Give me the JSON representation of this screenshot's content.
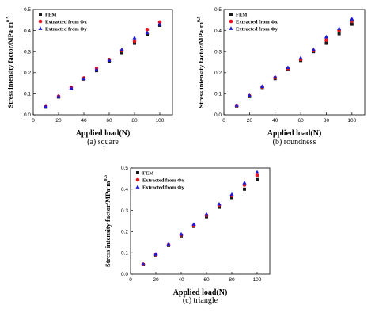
{
  "colors": {
    "fem": "#1a1a1a",
    "phi_x": "#e8141c",
    "phi_y": "#1b1bd6"
  },
  "chart_data": [
    {
      "type": "scatter",
      "caption": "(a) square",
      "xlabel": "Applied load(N)",
      "ylabel_text": "Stress intensity factor/MPa·m",
      "ylabel_exp": "0.5",
      "xlim": [
        0,
        110
      ],
      "ylim": [
        0,
        0.5
      ],
      "xticks": [
        "0",
        "20",
        "40",
        "60",
        "80",
        "100"
      ],
      "yticks": [
        "0.0",
        "0.1",
        "0.2",
        "0.3",
        "0.4",
        "0.5"
      ],
      "legend": [
        "FEM",
        "Extracted from Φx",
        "Extracted from Φy"
      ],
      "x": [
        10,
        20,
        30,
        40,
        50,
        60,
        70,
        80,
        90,
        100
      ],
      "series": [
        {
          "name": "FEM",
          "values": [
            0.04,
            0.085,
            0.125,
            0.17,
            0.21,
            0.255,
            0.295,
            0.34,
            0.38,
            0.425
          ]
        },
        {
          "name": "Extracted from Φx",
          "values": [
            0.042,
            0.088,
            0.13,
            0.175,
            0.22,
            0.262,
            0.305,
            0.35,
            0.405,
            0.44
          ]
        },
        {
          "name": "Extracted from Φy",
          "values": [
            0.041,
            0.087,
            0.128,
            0.172,
            0.215,
            0.26,
            0.31,
            0.365,
            0.39,
            0.43
          ]
        }
      ]
    },
    {
      "type": "scatter",
      "caption": "(b) roundness",
      "xlabel": "Applied load(N)",
      "ylabel_text": "Stress intensity factor/MPa·m",
      "ylabel_exp": "0.5",
      "xlim": [
        0,
        110
      ],
      "ylim": [
        0,
        0.5
      ],
      "xticks": [
        "0",
        "20",
        "40",
        "60",
        "80",
        "100"
      ],
      "yticks": [
        "0.0",
        "0.1",
        "0.2",
        "0.3",
        "0.4",
        "0.5"
      ],
      "legend": [
        "FEM",
        "Extracted from Φx",
        "Extracted from Φy"
      ],
      "x": [
        10,
        20,
        30,
        40,
        50,
        60,
        70,
        80,
        90,
        100
      ],
      "series": [
        {
          "name": "FEM",
          "values": [
            0.042,
            0.087,
            0.13,
            0.172,
            0.215,
            0.258,
            0.3,
            0.34,
            0.385,
            0.43
          ]
        },
        {
          "name": "Extracted from Φx",
          "values": [
            0.044,
            0.09,
            0.133,
            0.177,
            0.22,
            0.263,
            0.305,
            0.355,
            0.4,
            0.445
          ]
        },
        {
          "name": "Extracted from Φy",
          "values": [
            0.045,
            0.092,
            0.135,
            0.18,
            0.225,
            0.27,
            0.31,
            0.37,
            0.41,
            0.455
          ]
        }
      ]
    },
    {
      "type": "scatter",
      "caption": "(c) triangle",
      "xlabel": "Applied load(N)",
      "ylabel_text": "Stress intensity factor/MPa·m",
      "ylabel_exp": "0.5",
      "xlim": [
        0,
        110
      ],
      "ylim": [
        0,
        0.5
      ],
      "xticks": [
        "0",
        "20",
        "40",
        "60",
        "80",
        "100"
      ],
      "yticks": [
        "0.0",
        "0.1",
        "0.2",
        "0.3",
        "0.4",
        "0.5"
      ],
      "legend": [
        "FEM",
        "Extracted from Φx",
        "Extracted from Φy"
      ],
      "x": [
        10,
        20,
        30,
        40,
        50,
        60,
        70,
        80,
        90,
        100
      ],
      "series": [
        {
          "name": "FEM",
          "values": [
            0.045,
            0.09,
            0.135,
            0.18,
            0.225,
            0.27,
            0.315,
            0.36,
            0.4,
            0.445
          ]
        },
        {
          "name": "Extracted from Φx",
          "values": [
            0.046,
            0.092,
            0.138,
            0.185,
            0.23,
            0.278,
            0.325,
            0.37,
            0.42,
            0.465
          ]
        },
        {
          "name": "Extracted from Φy",
          "values": [
            0.047,
            0.094,
            0.14,
            0.188,
            0.235,
            0.282,
            0.33,
            0.375,
            0.43,
            0.48
          ]
        }
      ]
    }
  ]
}
